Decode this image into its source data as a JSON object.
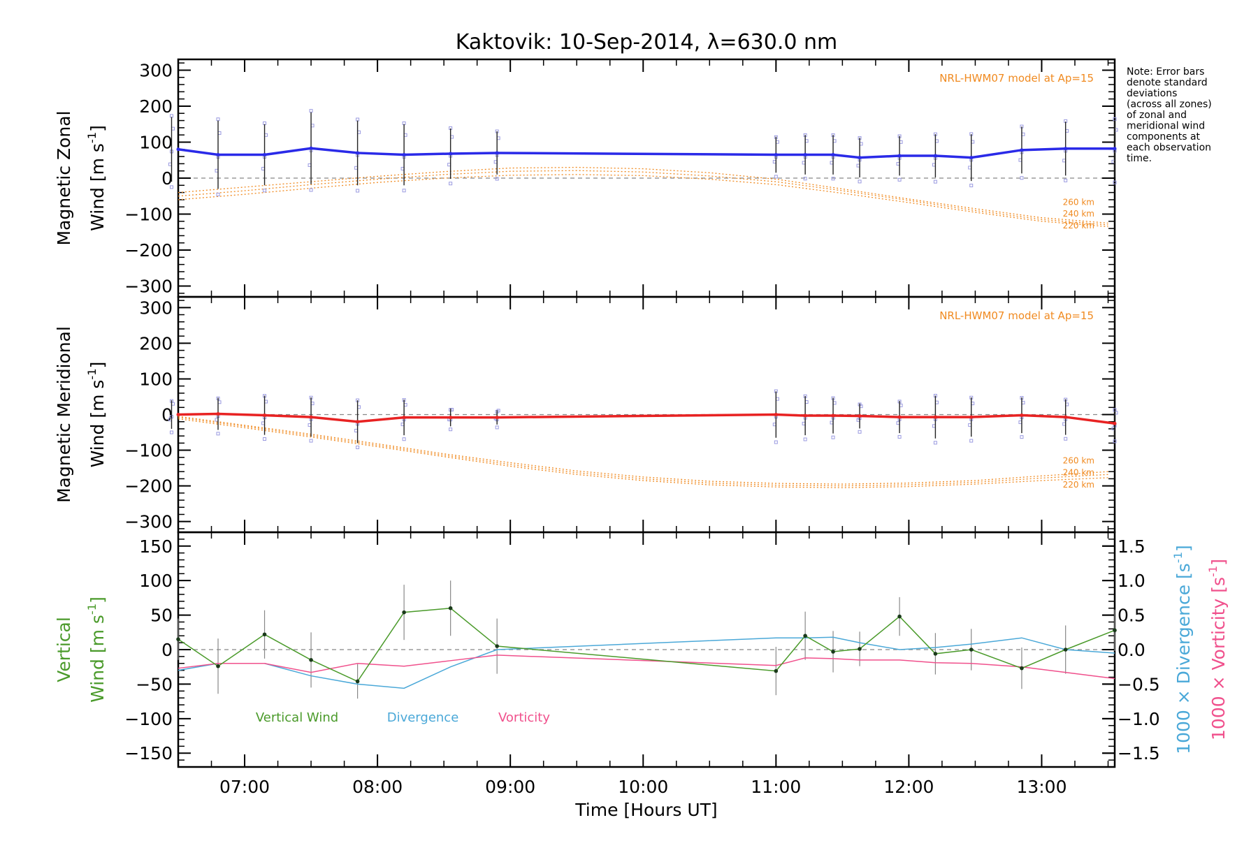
{
  "chart_data": {
    "type": "line",
    "title": "Kaktovik: 10-Sep-2014, λ=630.0 nm",
    "xlabel": "Time [Hours UT]",
    "xlim": [
      6.5,
      13.55
    ],
    "x_tick_values": [
      7,
      8,
      9,
      10,
      11,
      12,
      13
    ],
    "x_tick_labels": [
      "07:00",
      "08:00",
      "09:00",
      "10:00",
      "11:00",
      "12:00",
      "13:00"
    ],
    "note": "Note: Error bars denote standard deviations (across all zones) of zonal and meridional wind components at each observation time.",
    "colors": {
      "zonal": "#2a2ae8",
      "meridional": "#e82222",
      "model": "#f08a20",
      "vertical": "#4a9a2a",
      "divergence": "#4aa8d8",
      "vorticity": "#f0508c",
      "zone_points": "#9a9ae0",
      "error_bar": "#222222",
      "vertical_error_bar": "#888888"
    },
    "panels": [
      {
        "name": "zonal",
        "ylabel_line1": "Magnetic Zonal",
        "ylabel_line2": "Wind [m s",
        "ylabel_sup": "-1",
        "ylabel_close": "]",
        "ylim": [
          -330,
          330
        ],
        "y_ticks": [
          -300,
          -200,
          -100,
          0,
          100,
          200,
          300
        ],
        "y_tick_labels": [
          "−300",
          "−200",
          "−100",
          "0",
          "100",
          "200",
          "300"
        ],
        "model_label": "NRL-HWM07 model at Ap=15",
        "altitude_labels": [
          "260 km",
          "240 km",
          "220 km"
        ],
        "series": {
          "x": [
            6.45,
            6.8,
            7.15,
            7.5,
            7.85,
            8.2,
            8.55,
            8.9,
            11.0,
            11.22,
            11.43,
            11.63,
            11.93,
            12.2,
            12.47,
            12.85,
            13.18,
            13.55
          ],
          "y": [
            80,
            65,
            65,
            83,
            70,
            65,
            68,
            70,
            65,
            65,
            65,
            57,
            62,
            62,
            57,
            78,
            82,
            82
          ],
          "err": [
            90,
            95,
            85,
            100,
            90,
            85,
            70,
            60,
            50,
            55,
            55,
            55,
            55,
            60,
            65,
            65,
            75,
            80
          ]
        },
        "model": {
          "x": [
            6.5,
            7.0,
            7.5,
            8.0,
            8.5,
            9.0,
            9.5,
            10.0,
            10.5,
            11.0,
            11.5,
            12.0,
            12.5,
            13.0,
            13.5
          ],
          "alt_260": [
            -40,
            -25,
            -10,
            5,
            18,
            28,
            30,
            26,
            15,
            -3,
            -30,
            -58,
            -85,
            -110,
            -125
          ],
          "alt_240": [
            -50,
            -35,
            -18,
            -3,
            10,
            19,
            21,
            17,
            6,
            -10,
            -35,
            -62,
            -90,
            -115,
            -130
          ],
          "alt_220": [
            -60,
            -45,
            -28,
            -12,
            0,
            8,
            10,
            7,
            -3,
            -18,
            -42,
            -68,
            -95,
            -120,
            -135
          ]
        }
      },
      {
        "name": "meridional",
        "ylabel_line1": "Magnetic Meridional",
        "ylabel_line2": "Wind [m s",
        "ylabel_sup": "-1",
        "ylabel_close": "]",
        "ylim": [
          -330,
          330
        ],
        "y_ticks": [
          -300,
          -200,
          -100,
          0,
          100,
          200,
          300
        ],
        "y_tick_labels": [
          "−300",
          "−200",
          "−100",
          "0",
          "100",
          "200",
          "300"
        ],
        "model_label": "NRL-HWM07 model at Ap=15",
        "altitude_labels": [
          "260 km",
          "240 km",
          "220 km"
        ],
        "series": {
          "x": [
            6.45,
            6.8,
            7.15,
            7.5,
            7.85,
            8.2,
            8.55,
            8.9,
            11.0,
            11.22,
            11.43,
            11.63,
            11.93,
            12.2,
            12.47,
            12.85,
            13.18,
            13.55
          ],
          "y": [
            0,
            2,
            -2,
            -7,
            -20,
            -8,
            -8,
            -8,
            0,
            -3,
            -3,
            -4,
            -7,
            -7,
            -7,
            -2,
            -7,
            -25
          ],
          "err": [
            40,
            45,
            55,
            55,
            60,
            50,
            25,
            20,
            65,
            55,
            50,
            35,
            45,
            60,
            55,
            50,
            50,
            40
          ]
        },
        "model": {
          "x": [
            6.5,
            7.0,
            7.5,
            8.0,
            8.5,
            9.0,
            9.5,
            10.0,
            10.5,
            11.0,
            11.5,
            12.0,
            12.5,
            13.0,
            13.5
          ],
          "alt_260": [
            -5,
            -30,
            -55,
            -82,
            -110,
            -135,
            -158,
            -175,
            -187,
            -193,
            -195,
            -192,
            -185,
            -172,
            -160
          ],
          "alt_240": [
            -8,
            -33,
            -59,
            -86,
            -114,
            -140,
            -163,
            -180,
            -192,
            -198,
            -200,
            -197,
            -190,
            -178,
            -168
          ],
          "alt_220": [
            -12,
            -37,
            -63,
            -90,
            -118,
            -145,
            -168,
            -185,
            -197,
            -203,
            -205,
            -202,
            -195,
            -185,
            -177
          ]
        }
      },
      {
        "name": "vertical",
        "ylabel_line1": "Vertical",
        "ylabel_line2": "Wind [m s",
        "ylabel_sup": "-1",
        "ylabel_close": "]",
        "ylim": [
          -170,
          170
        ],
        "y_ticks": [
          -150,
          -100,
          -50,
          0,
          50,
          100,
          150
        ],
        "y_tick_labels": [
          "−150",
          "−100",
          "−50",
          "0",
          "50",
          "100",
          "150"
        ],
        "right_ylim": [
          -1.7,
          1.7
        ],
        "right_y_ticks": [
          -1.5,
          -1.0,
          -0.5,
          0.0,
          0.5,
          1.0,
          1.5
        ],
        "right_y_tick_labels": [
          "−1.5",
          "−1.0",
          "−0.5",
          "0.0",
          "0.5",
          "1.0",
          "1.5"
        ],
        "right_label_div": "1000 × Divergence [s",
        "right_label_vort": "1000 × Vorticity [s",
        "right_label_sup": "-1",
        "right_label_close": "]",
        "legend": [
          "Vertical Wind",
          "Divergence",
          "Vorticity"
        ],
        "vertical": {
          "x": [
            6.45,
            6.8,
            7.15,
            7.5,
            7.85,
            8.2,
            8.55,
            8.9,
            11.0,
            11.22,
            11.43,
            11.63,
            11.93,
            12.2,
            12.47,
            12.85,
            13.18,
            13.55
          ],
          "y": [
            15,
            -24,
            22,
            -15,
            -46,
            54,
            60,
            5,
            -31,
            20,
            -3,
            1,
            48,
            -6,
            0,
            -27,
            0,
            28
          ],
          "err": [
            30,
            40,
            35,
            40,
            25,
            40,
            40,
            40,
            35,
            35,
            30,
            25,
            28,
            30,
            30,
            30,
            35,
            30
          ]
        },
        "divergence": {
          "x": [
            6.45,
            6.8,
            7.15,
            7.5,
            7.85,
            8.2,
            8.55,
            8.9,
            11.0,
            11.22,
            11.43,
            11.63,
            11.93,
            12.2,
            12.47,
            12.85,
            13.18,
            13.55
          ],
          "y": [
            -0.3,
            -0.2,
            -0.2,
            -0.38,
            -0.5,
            -0.56,
            -0.25,
            0.0,
            0.17,
            0.17,
            0.18,
            0.1,
            0.0,
            0.03,
            0.08,
            0.17,
            0.0,
            -0.05
          ]
        },
        "vorticity": {
          "x": [
            6.45,
            6.8,
            7.15,
            7.5,
            7.85,
            8.2,
            8.55,
            8.9,
            11.0,
            11.22,
            11.43,
            11.63,
            11.93,
            12.2,
            12.47,
            12.85,
            13.18,
            13.55
          ],
          "y": [
            -0.27,
            -0.2,
            -0.2,
            -0.33,
            -0.2,
            -0.24,
            -0.16,
            -0.08,
            -0.23,
            -0.12,
            -0.13,
            -0.15,
            -0.15,
            -0.19,
            -0.2,
            -0.25,
            -0.33,
            -0.42
          ]
        }
      }
    ]
  }
}
